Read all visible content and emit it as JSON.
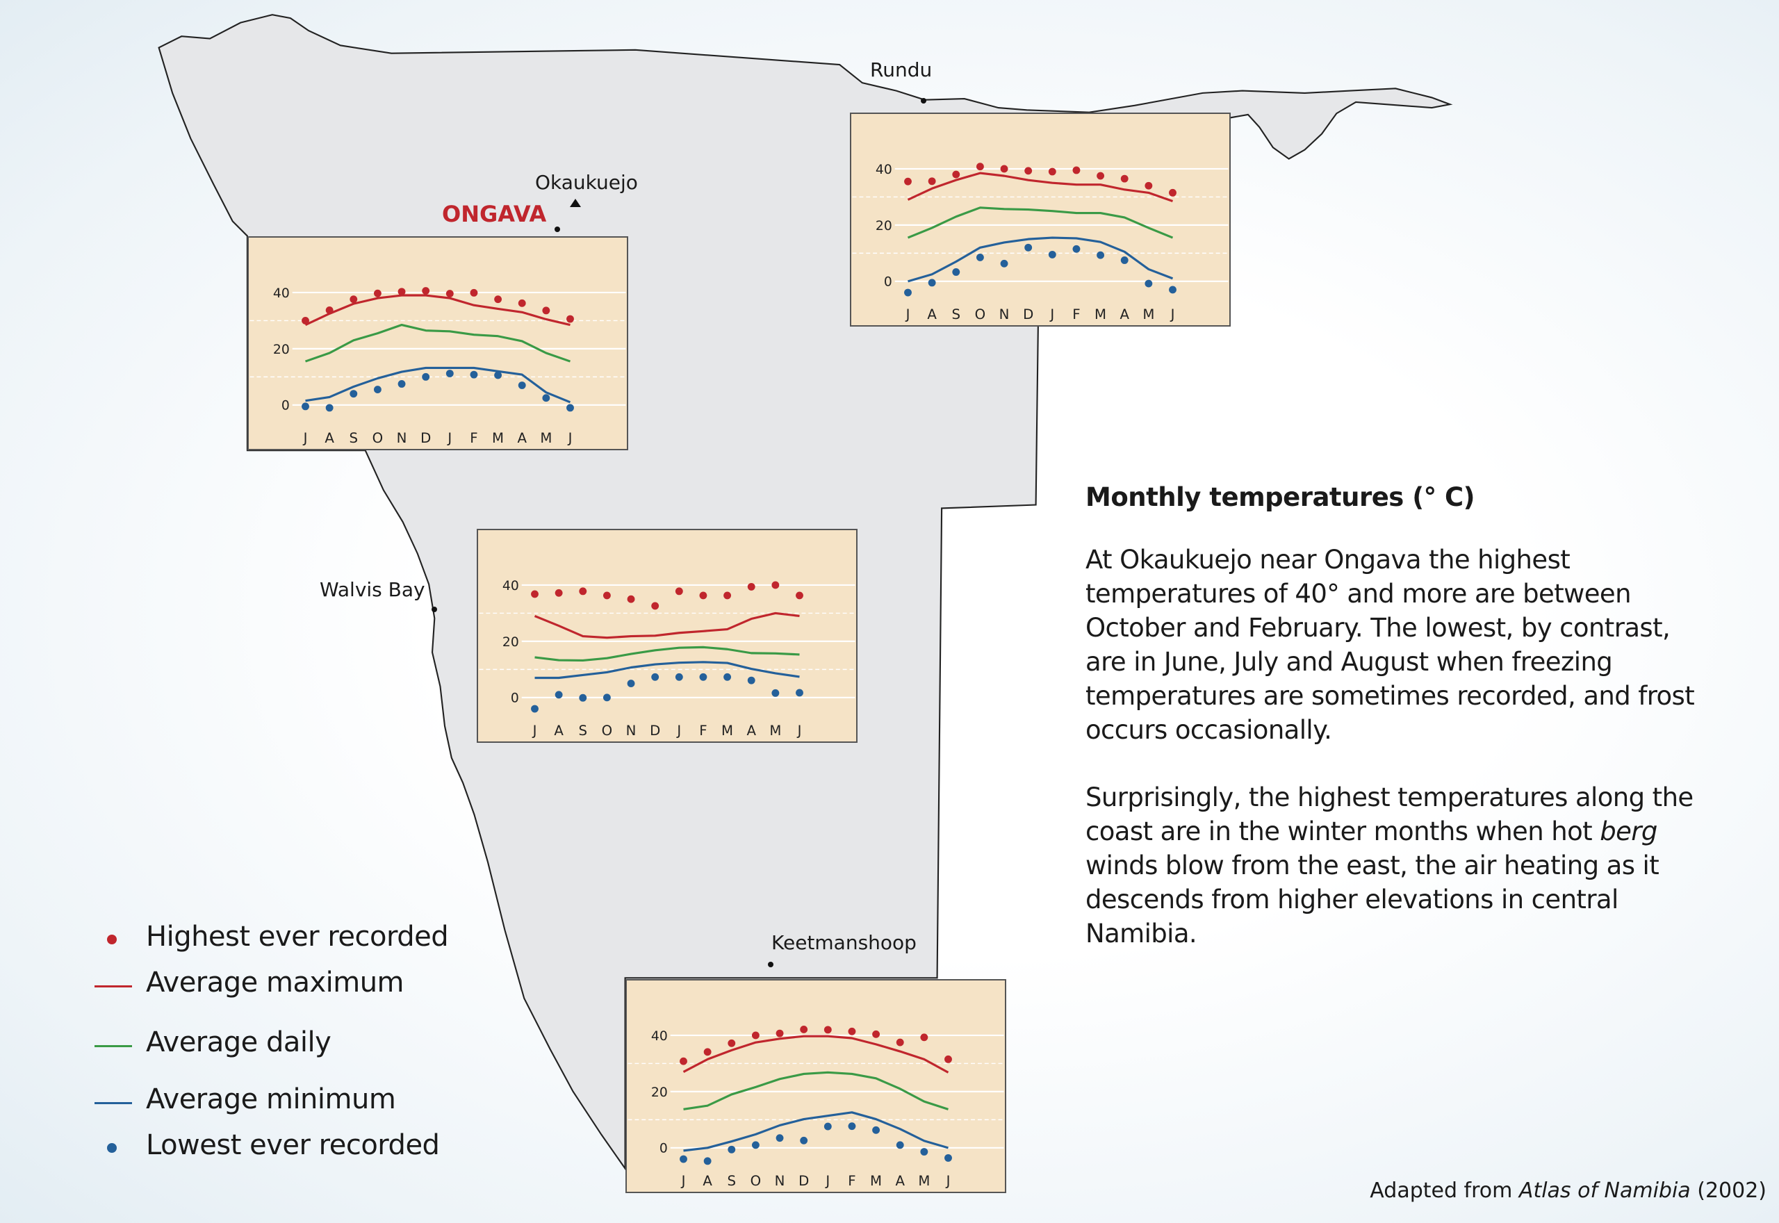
{
  "map": {
    "places": {
      "rundu": "Rundu",
      "okaukuejo": "Okaukuejo",
      "ongava": "ONGAVA",
      "walvis_bay": "Walvis Bay",
      "keetmanshoop": "Keetmanshoop"
    },
    "colors": {
      "land": "#e6e7e9",
      "chart_bg": "#f5e3c6"
    }
  },
  "info": {
    "title": "Monthly temperatures (° C)",
    "paragraph1": "At Okaukuejo near Ongava the highest temperatures of 40° and more are between October and February. The lowest, by contrast, are in June, July and August when freezing temperatures are sometimes recorded, and frost occurs occasionally.",
    "paragraph2_italic": "berg",
    "paragraph2_before": "Surprisingly, the highest temperatures along the coast are in the winter months when hot ",
    "paragraph2_after": " winds blow from the east, the air heating as it descends from higher elevations in central Namibia."
  },
  "legend": {
    "items": [
      {
        "label": "Highest ever recorded",
        "kind": "dot",
        "color": "#c0262d"
      },
      {
        "label": "Average maximum",
        "kind": "line",
        "color": "#c0262d"
      },
      {
        "label": "Average daily",
        "kind": "line",
        "color": "#3a9a46"
      },
      {
        "label": "Average minimum",
        "kind": "line",
        "color": "#24609a"
      },
      {
        "label": "Lowest ever recorded",
        "kind": "dot",
        "color": "#24609a"
      }
    ]
  },
  "attribution": {
    "prefix": "Adapted from ",
    "source": "Atlas of Namibia",
    "suffix": " (2002)"
  },
  "chart_data": [
    {
      "type": "line",
      "station": "Okaukuejo",
      "categories": [
        "J",
        "A",
        "S",
        "O",
        "N",
        "D",
        "J",
        "F",
        "M",
        "A",
        "M",
        "J"
      ],
      "yticks": [
        "0",
        "20",
        "40"
      ],
      "ylim": [
        -5,
        45
      ],
      "grid": true,
      "series": [
        {
          "name": "Highest ever recorded",
          "style": "dot",
          "color": "#c0262d",
          "values": [
            30,
            33.7,
            37.6,
            39.7,
            40.3,
            40.6,
            39.6,
            39.9,
            37.6,
            36.2,
            33.6,
            30.6
          ]
        },
        {
          "name": "Average maximum",
          "style": "line",
          "color": "#c0262d",
          "values": [
            28.5,
            32.5,
            36,
            38,
            39,
            39,
            38,
            35.5,
            34.2,
            33,
            30.5,
            28.5
          ]
        },
        {
          "name": "Average daily",
          "style": "line",
          "color": "#3a9a46",
          "values": [
            15.5,
            18.5,
            23,
            25.5,
            28.5,
            26.5,
            26.2,
            25,
            24.5,
            22.7,
            18.5,
            15.5
          ]
        },
        {
          "name": "Average minimum",
          "style": "line",
          "color": "#24609a",
          "values": [
            1.5,
            2.8,
            6.5,
            9.5,
            11.8,
            13.2,
            13.2,
            13.2,
            12,
            10.8,
            4.5,
            1
          ]
        },
        {
          "name": "Lowest ever recorded",
          "style": "dot",
          "color": "#24609a",
          "values": [
            -0.5,
            -1,
            4,
            5.5,
            7.5,
            10,
            11.2,
            10.8,
            10.6,
            7,
            2.5,
            -1
          ]
        }
      ]
    },
    {
      "type": "line",
      "station": "Rundu",
      "categories": [
        "J",
        "A",
        "S",
        "O",
        "N",
        "D",
        "J",
        "F",
        "M",
        "A",
        "M",
        "J"
      ],
      "yticks": [
        "0",
        "20",
        "40"
      ],
      "ylim": [
        -5,
        45
      ],
      "grid": true,
      "series": [
        {
          "name": "Highest ever recorded",
          "style": "dot",
          "color": "#c0262d",
          "values": [
            35.5,
            35.6,
            38,
            40.8,
            40,
            39.3,
            39,
            39.5,
            37.5,
            36.5,
            34,
            31.5
          ]
        },
        {
          "name": "Average maximum",
          "style": "line",
          "color": "#c0262d",
          "values": [
            29,
            33,
            36,
            38.5,
            37.5,
            36,
            35,
            34.4,
            34.4,
            32.6,
            31.5,
            28.5
          ]
        },
        {
          "name": "Average daily",
          "style": "line",
          "color": "#3a9a46",
          "values": [
            15.5,
            19,
            23,
            26.2,
            25.7,
            25.5,
            25,
            24.3,
            24.3,
            22.7,
            19,
            15.5
          ]
        },
        {
          "name": "Average minimum",
          "style": "line",
          "color": "#24609a",
          "values": [
            0,
            2.5,
            7,
            12,
            13.8,
            15,
            15.5,
            15.3,
            14,
            10.5,
            4.3,
            1
          ]
        },
        {
          "name": "Lowest ever recorded",
          "style": "dot",
          "color": "#24609a",
          "values": [
            -4,
            -0.5,
            3.3,
            8.5,
            6.3,
            12,
            9.5,
            11.5,
            9.3,
            7.5,
            -0.8,
            -3
          ]
        }
      ]
    },
    {
      "type": "line",
      "station": "Walvis Bay",
      "categories": [
        "J",
        "A",
        "S",
        "O",
        "N",
        "D",
        "J",
        "F",
        "M",
        "A",
        "M",
        "J"
      ],
      "yticks": [
        "0",
        "20",
        "40"
      ],
      "ylim": [
        -5,
        45
      ],
      "grid": true,
      "series": [
        {
          "name": "Highest ever recorded",
          "style": "dot",
          "color": "#c0262d",
          "values": [
            36.8,
            37.2,
            37.8,
            36.3,
            35,
            32.6,
            37.8,
            36.3,
            36.3,
            39.4,
            40,
            36.3
          ]
        },
        {
          "name": "Average maximum",
          "style": "line",
          "color": "#c0262d",
          "values": [
            29,
            25.5,
            21.8,
            21.3,
            21.8,
            22,
            23,
            23.6,
            24.3,
            28,
            30,
            29
          ]
        },
        {
          "name": "Average daily",
          "style": "line",
          "color": "#3a9a46",
          "values": [
            14.3,
            13.3,
            13.2,
            14,
            15.5,
            16.8,
            17.7,
            17.9,
            17.2,
            15.8,
            15.7,
            15.3
          ]
        },
        {
          "name": "Average minimum",
          "style": "line",
          "color": "#24609a",
          "values": [
            7,
            7,
            8,
            9,
            10.7,
            11.8,
            12.4,
            12.6,
            12.3,
            10.2,
            8.6,
            7.4
          ]
        },
        {
          "name": "Lowest ever recorded",
          "style": "dot",
          "color": "#24609a",
          "values": [
            -4,
            1,
            -0.1,
            0,
            5,
            7.3,
            7.3,
            7.3,
            7.3,
            6.1,
            1.6,
            1.7
          ]
        }
      ]
    },
    {
      "type": "line",
      "station": "Keetmanshoop",
      "categories": [
        "J",
        "A",
        "S",
        "O",
        "N",
        "D",
        "J",
        "F",
        "M",
        "A",
        "M",
        "J"
      ],
      "yticks": [
        "0",
        "20",
        "40"
      ],
      "ylim": [
        -5,
        45
      ],
      "grid": true,
      "series": [
        {
          "name": "Highest ever recorded",
          "style": "dot",
          "color": "#c0262d",
          "values": [
            30.8,
            34.1,
            37.2,
            40,
            40.7,
            42.1,
            42,
            41.4,
            40.4,
            37.5,
            39.3,
            31.5
          ]
        },
        {
          "name": "Average maximum",
          "style": "line",
          "color": "#c0262d",
          "values": [
            27,
            31.5,
            34.7,
            37.5,
            38.8,
            39.7,
            39.7,
            39,
            36.8,
            34.3,
            31.5,
            26.8
          ]
        },
        {
          "name": "Average daily",
          "style": "line",
          "color": "#3a9a46",
          "values": [
            13.7,
            15,
            19,
            21.6,
            24.5,
            26.3,
            26.8,
            26.3,
            24.7,
            21,
            16.5,
            13.7
          ]
        },
        {
          "name": "Average minimum",
          "style": "line",
          "color": "#24609a",
          "values": [
            -1,
            0,
            2.3,
            4.8,
            8,
            10.2,
            11.4,
            12.6,
            10.2,
            6.7,
            2.5,
            0
          ]
        },
        {
          "name": "Lowest ever recorded",
          "style": "dot",
          "color": "#24609a",
          "values": [
            -4,
            -4.7,
            -0.6,
            1,
            3.5,
            2.6,
            7.6,
            7.7,
            6.3,
            1,
            -1.4,
            -3.6
          ]
        }
      ]
    }
  ]
}
